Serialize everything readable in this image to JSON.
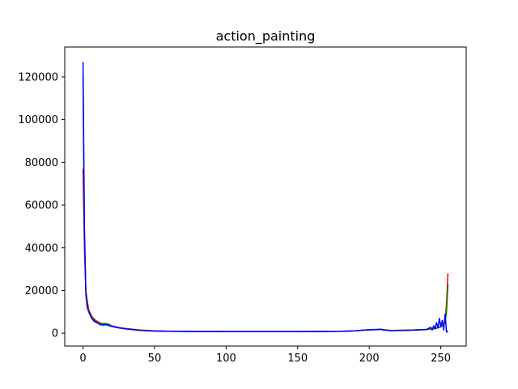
{
  "chart_data": {
    "type": "line",
    "title": "action_painting",
    "xlabel": "",
    "ylabel": "",
    "xlim": [
      -12.75,
      267.75
    ],
    "ylim": [
      -6000,
      134000
    ],
    "xticks": [
      0,
      50,
      100,
      150,
      200,
      250
    ],
    "yticks": [
      0,
      20000,
      40000,
      60000,
      80000,
      100000,
      120000
    ],
    "grid": false,
    "legend": "none",
    "series": [
      {
        "color": "#ff0000",
        "points": [
          [
            0,
            77000
          ],
          [
            1,
            40000
          ],
          [
            2,
            20000
          ],
          [
            3,
            15000
          ],
          [
            4,
            11000
          ],
          [
            5,
            9500
          ],
          [
            6,
            8000
          ],
          [
            8,
            6500
          ],
          [
            10,
            5500
          ],
          [
            12,
            4800
          ],
          [
            14,
            4300
          ],
          [
            16,
            4100
          ],
          [
            18,
            3900
          ],
          [
            20,
            3500
          ],
          [
            25,
            2700
          ],
          [
            30,
            2200
          ],
          [
            40,
            1500
          ],
          [
            50,
            1100
          ],
          [
            60,
            950
          ],
          [
            80,
            850
          ],
          [
            100,
            800
          ],
          [
            120,
            780
          ],
          [
            150,
            780
          ],
          [
            180,
            900
          ],
          [
            190,
            1100
          ],
          [
            195,
            1400
          ],
          [
            200,
            1600
          ],
          [
            205,
            1700
          ],
          [
            208,
            1800
          ],
          [
            210,
            1600
          ],
          [
            215,
            1300
          ],
          [
            220,
            1350
          ],
          [
            230,
            1500
          ],
          [
            240,
            1800
          ],
          [
            245,
            2200
          ],
          [
            248,
            2600
          ],
          [
            250,
            3200
          ],
          [
            252,
            4200
          ],
          [
            253,
            5200
          ],
          [
            254,
            14000
          ],
          [
            255,
            28000
          ]
        ]
      },
      {
        "color": "#008000",
        "points": [
          [
            0,
            120000
          ],
          [
            1,
            45000
          ],
          [
            2,
            20000
          ],
          [
            3,
            13000
          ],
          [
            4,
            10500
          ],
          [
            5,
            9000
          ],
          [
            6,
            7500
          ],
          [
            8,
            6000
          ],
          [
            10,
            5000
          ],
          [
            12,
            4300
          ],
          [
            14,
            4600
          ],
          [
            16,
            4500
          ],
          [
            18,
            4300
          ],
          [
            20,
            3400
          ],
          [
            25,
            2600
          ],
          [
            30,
            2100
          ],
          [
            40,
            1400
          ],
          [
            50,
            1000
          ],
          [
            60,
            900
          ],
          [
            80,
            820
          ],
          [
            100,
            800
          ],
          [
            120,
            780
          ],
          [
            150,
            780
          ],
          [
            180,
            900
          ],
          [
            190,
            1100
          ],
          [
            195,
            1400
          ],
          [
            200,
            1700
          ],
          [
            205,
            1800
          ],
          [
            208,
            1900
          ],
          [
            210,
            1700
          ],
          [
            215,
            1300
          ],
          [
            220,
            1350
          ],
          [
            230,
            1500
          ],
          [
            240,
            1800
          ],
          [
            245,
            2100
          ],
          [
            248,
            2500
          ],
          [
            250,
            3000
          ],
          [
            252,
            4000
          ],
          [
            253,
            5000
          ],
          [
            254,
            10000
          ],
          [
            255,
            23000
          ]
        ]
      },
      {
        "color": "#0000ff",
        "points": [
          [
            0,
            127000
          ],
          [
            1,
            50000
          ],
          [
            2,
            18000
          ],
          [
            3,
            12000
          ],
          [
            4,
            10000
          ],
          [
            5,
            8500
          ],
          [
            6,
            7000
          ],
          [
            8,
            5500
          ],
          [
            10,
            4800
          ],
          [
            12,
            4000
          ],
          [
            14,
            3800
          ],
          [
            16,
            4000
          ],
          [
            18,
            3600
          ],
          [
            20,
            3200
          ],
          [
            25,
            2500
          ],
          [
            30,
            2000
          ],
          [
            40,
            1300
          ],
          [
            50,
            1000
          ],
          [
            60,
            900
          ],
          [
            80,
            800
          ],
          [
            100,
            780
          ],
          [
            120,
            760
          ],
          [
            150,
            760
          ],
          [
            180,
            880
          ],
          [
            190,
            1100
          ],
          [
            195,
            1400
          ],
          [
            200,
            1600
          ],
          [
            205,
            1700
          ],
          [
            208,
            1800
          ],
          [
            210,
            1500
          ],
          [
            215,
            1200
          ],
          [
            220,
            1250
          ],
          [
            230,
            1400
          ],
          [
            240,
            1700
          ],
          [
            243,
            2800
          ],
          [
            244,
            1500
          ],
          [
            245,
            3500
          ],
          [
            246,
            2000
          ],
          [
            247,
            5000
          ],
          [
            248,
            2500
          ],
          [
            249,
            7000
          ],
          [
            250,
            3000
          ],
          [
            251,
            6000
          ],
          [
            252,
            1500
          ],
          [
            253,
            9000
          ],
          [
            254,
            500
          ],
          [
            255,
            1000
          ]
        ]
      }
    ]
  }
}
